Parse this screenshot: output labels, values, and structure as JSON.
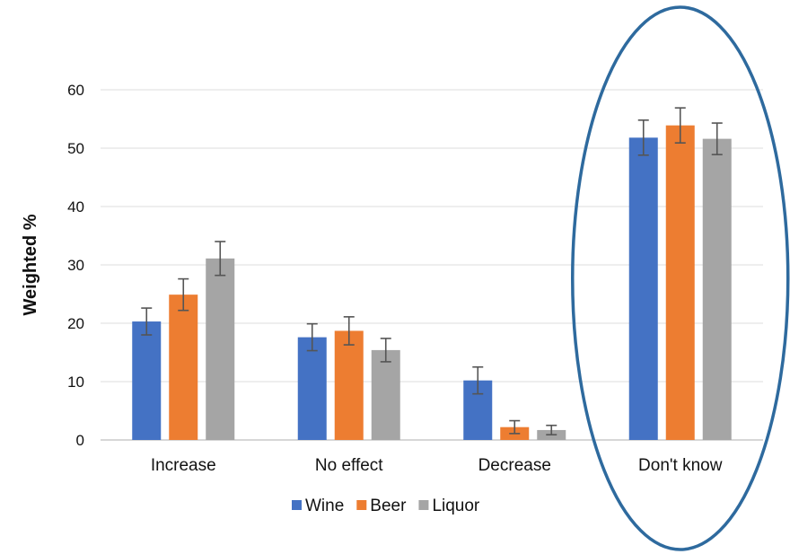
{
  "chart_data": {
    "type": "bar",
    "title": "",
    "xlabel": "",
    "ylabel": "Weighted %",
    "ylim": [
      0,
      60
    ],
    "yticks": [
      0,
      10,
      20,
      30,
      40,
      50,
      60
    ],
    "grid": true,
    "legend": "bottom",
    "categories": [
      "Increase",
      "No effect",
      "Decrease",
      "Don't know"
    ],
    "series": [
      {
        "name": "Wine",
        "color": "#4472C4",
        "values": [
          20.3,
          17.6,
          10.2,
          51.8
        ],
        "errors": [
          2.3,
          2.3,
          2.3,
          3.0
        ]
      },
      {
        "name": "Beer",
        "color": "#ED7D31",
        "values": [
          24.9,
          18.7,
          2.2,
          53.9
        ],
        "errors": [
          2.7,
          2.4,
          1.1,
          3.0
        ]
      },
      {
        "name": "Liquor",
        "color": "#A5A5A5",
        "values": [
          31.1,
          15.4,
          1.7,
          51.6
        ],
        "errors": [
          2.9,
          2.0,
          0.8,
          2.7
        ]
      }
    ],
    "highlight": {
      "category": "Don't know",
      "shape": "ellipse",
      "color": "#2E6A9E"
    }
  }
}
